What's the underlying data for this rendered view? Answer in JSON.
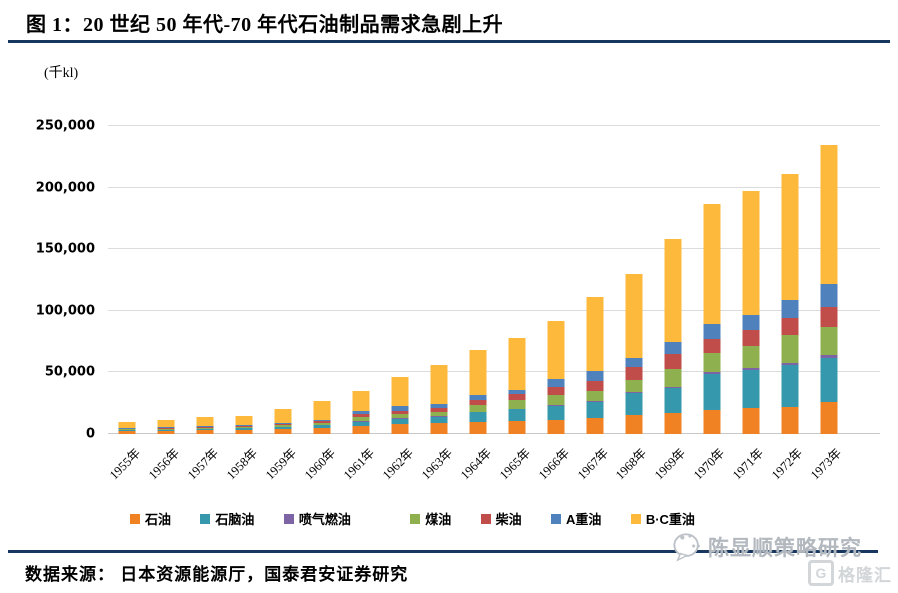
{
  "header": {
    "title": "图 1：20 世纪 50 年代-70 年代石油制品需求急剧上升"
  },
  "footer": {
    "source": "数据来源： 日本资源能源厅，国泰君安证券研究",
    "watermark_text": "陈显顺策略研究",
    "brand_text": "格隆汇",
    "brand_icon_letter": "G"
  },
  "colors": {
    "accent_line": "#17375E",
    "grid": "#DCDCDC",
    "watermark_gray": "#B2B8BE"
  },
  "chart_data": {
    "type": "bar",
    "stacked": true,
    "title": "图 1：20 世纪 50 年代-70 年代石油制品需求急剧上升",
    "unit_label": "(千kl)",
    "xlabel": "",
    "ylabel": "(千kl)",
    "ylim": [
      0,
      250000
    ],
    "yticks": [
      0,
      50000,
      100000,
      150000,
      200000,
      250000
    ],
    "grid": true,
    "legend_position": "bottom",
    "categories": [
      "1955年",
      "1956年",
      "1957年",
      "1958年",
      "1959年",
      "1960年",
      "1961年",
      "1962年",
      "1963年",
      "1964年",
      "1965年",
      "1966年",
      "1967年",
      "1968年",
      "1969年",
      "1970年",
      "1971年",
      "1972年",
      "1973年"
    ],
    "series": [
      {
        "name": "石油",
        "color": "#F08223",
        "values": [
          2500,
          2800,
          3200,
          3600,
          4300,
          5000,
          6800,
          7900,
          9200,
          10000,
          10400,
          11200,
          13100,
          15800,
          17000,
          19500,
          21000,
          22000,
          26000
        ]
      },
      {
        "name": "石脑油",
        "color": "#3598AC",
        "values": [
          500,
          700,
          900,
          1000,
          1400,
          2000,
          3300,
          4300,
          4700,
          7500,
          9500,
          11400,
          12800,
          17700,
          20000,
          29000,
          31000,
          34000,
          36000
        ]
      },
      {
        "name": "喷气燃油",
        "color": "#7C64A5",
        "values": [
          100,
          100,
          150,
          200,
          250,
          300,
          400,
          450,
          500,
          600,
          700,
          800,
          900,
          1000,
          1200,
          1500,
          1800,
          2000,
          2000
        ]
      },
      {
        "name": "煤油",
        "color": "#8FB04E",
        "values": [
          600,
          700,
          800,
          900,
          1100,
          1500,
          3300,
          3300,
          3500,
          5400,
          6800,
          8200,
          8200,
          9500,
          15000,
          16000,
          18000,
          22000,
          23000
        ]
      },
      {
        "name": "柴油",
        "color": "#C04D4A",
        "values": [
          700,
          800,
          900,
          1000,
          1200,
          1500,
          2500,
          3000,
          3300,
          4500,
          4900,
          6800,
          8200,
          10400,
          11500,
          11500,
          13000,
          14500,
          16000
        ]
      },
      {
        "name": "A重油",
        "color": "#4F81BD",
        "values": [
          600,
          700,
          800,
          900,
          1100,
          1400,
          2500,
          3500,
          3500,
          3500,
          3300,
          6000,
          7600,
          7400,
          10300,
          11500,
          12200,
          14500,
          19000
        ]
      },
      {
        "name": "B·C重油",
        "color": "#FDB93C",
        "values": [
          5000,
          5700,
          6750,
          7400,
          10650,
          15300,
          16200,
          23550,
          31300,
          36500,
          42400,
          47600,
          60200,
          68200,
          83000,
          98000,
          100000,
          102000,
          113000
        ]
      }
    ],
    "totals": [
      10000,
      11500,
      13500,
      15000,
      20000,
      27000,
      35000,
      46000,
      56000,
      68000,
      78000,
      92000,
      111000,
      130000,
      158000,
      187000,
      197000,
      211000,
      235000
    ]
  }
}
